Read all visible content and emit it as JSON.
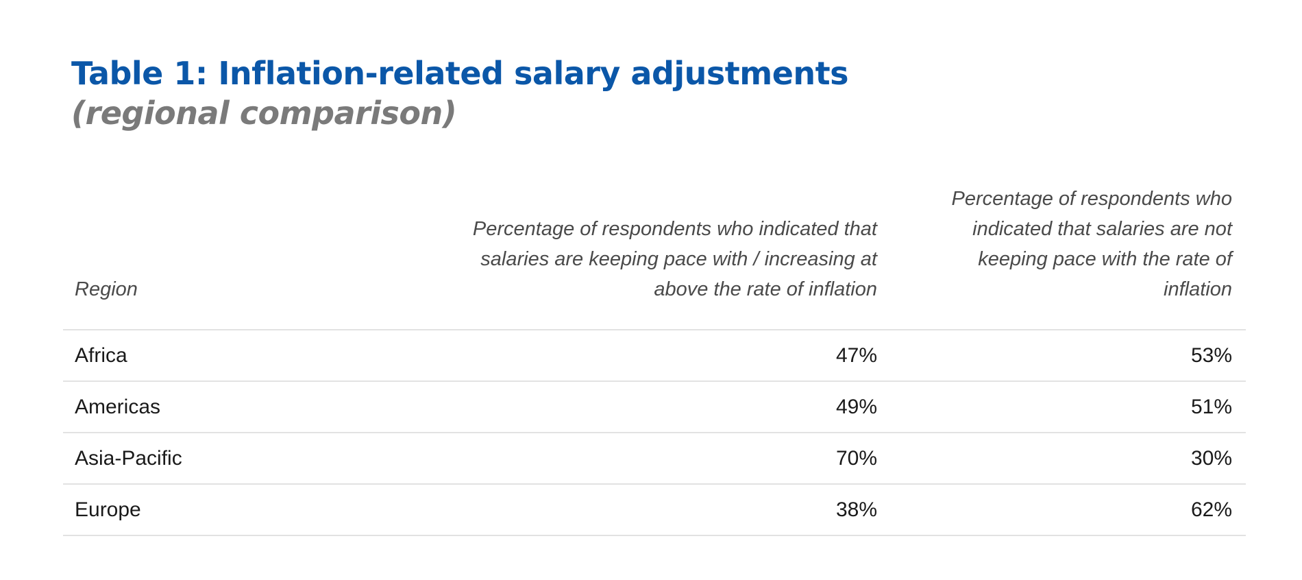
{
  "title": "Table 1: Inflation-related salary adjustments",
  "subtitle": "(regional comparison)",
  "table": {
    "headers": {
      "region": "Region",
      "keeping_pace": "Percentage of respondents who indicated that salaries are keeping pace with / increasing at above the rate of inflation",
      "not_keeping_pace": "Percentage of respondents who indicated that salaries are not keeping pace with the rate of inflation"
    },
    "rows": [
      {
        "region": "Africa",
        "keeping_pace": "47%",
        "not_keeping_pace": "53%"
      },
      {
        "region": "Americas",
        "keeping_pace": "49%",
        "not_keeping_pace": "51%"
      },
      {
        "region": "Asia-Pacific",
        "keeping_pace": "70%",
        "not_keeping_pace": "30%"
      },
      {
        "region": "Europe",
        "keeping_pace": "38%",
        "not_keeping_pace": "62%"
      }
    ]
  },
  "colors": {
    "title": "#0b57a8",
    "subtitle": "#7a7a7a",
    "header_text": "#4a4a4a",
    "body_text": "#1a1a1a",
    "rule": "#e2e2e2"
  }
}
